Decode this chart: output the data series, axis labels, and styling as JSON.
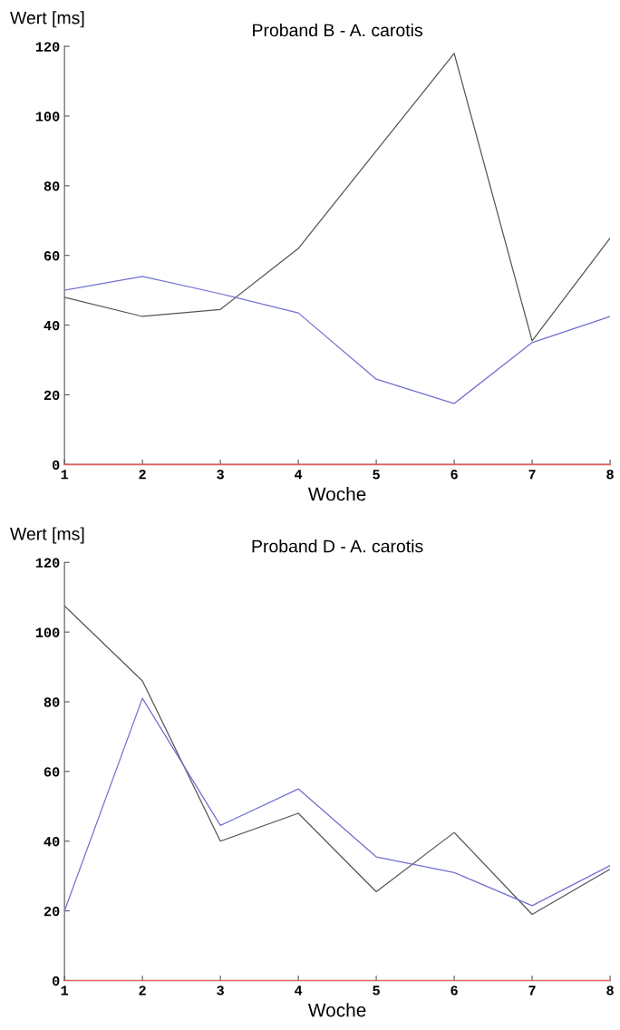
{
  "chart_data": [
    {
      "type": "line",
      "title": "Proband B - A. carotis",
      "xlabel": "Woche",
      "ylabel": "Wert [ms]",
      "x": [
        1,
        2,
        3,
        4,
        5,
        6,
        7,
        8
      ],
      "xlim": [
        1,
        8
      ],
      "xticks": [
        1,
        2,
        3,
        4,
        5,
        6,
        7,
        8
      ],
      "ylim": [
        0,
        120
      ],
      "yticks": [
        0,
        20,
        40,
        60,
        80,
        100,
        120
      ],
      "grid": false,
      "legend": false,
      "series": [
        {
          "color": "#555555",
          "values": [
            48,
            42.5,
            44.5,
            62,
            90,
            118,
            35.5,
            65
          ]
        },
        {
          "color": "#7070d0",
          "values": [
            50,
            54,
            49,
            43.5,
            24.5,
            17.5,
            35,
            42.5
          ]
        }
      ],
      "ref_lines": [
        {
          "axis": "y",
          "value": 0,
          "color": "#e06060"
        }
      ]
    },
    {
      "type": "line",
      "title": "Proband D - A. carotis",
      "xlabel": "Woche",
      "ylabel": "Wert [ms]",
      "x": [
        1,
        2,
        3,
        4,
        5,
        6,
        7,
        8
      ],
      "xlim": [
        1,
        8
      ],
      "xticks": [
        1,
        2,
        3,
        4,
        5,
        6,
        7,
        8
      ],
      "ylim": [
        0,
        120
      ],
      "yticks": [
        0,
        20,
        40,
        60,
        80,
        100,
        120
      ],
      "grid": false,
      "legend": false,
      "series": [
        {
          "color": "#555555",
          "values": [
            107.5,
            86,
            40,
            48,
            25.5,
            42.5,
            19,
            32
          ]
        },
        {
          "color": "#7070d0",
          "values": [
            20,
            81,
            44.5,
            55,
            35.5,
            31,
            21.5,
            33
          ]
        }
      ],
      "ref_lines": [
        {
          "axis": "y",
          "value": 0,
          "color": "#e06060"
        }
      ]
    }
  ]
}
